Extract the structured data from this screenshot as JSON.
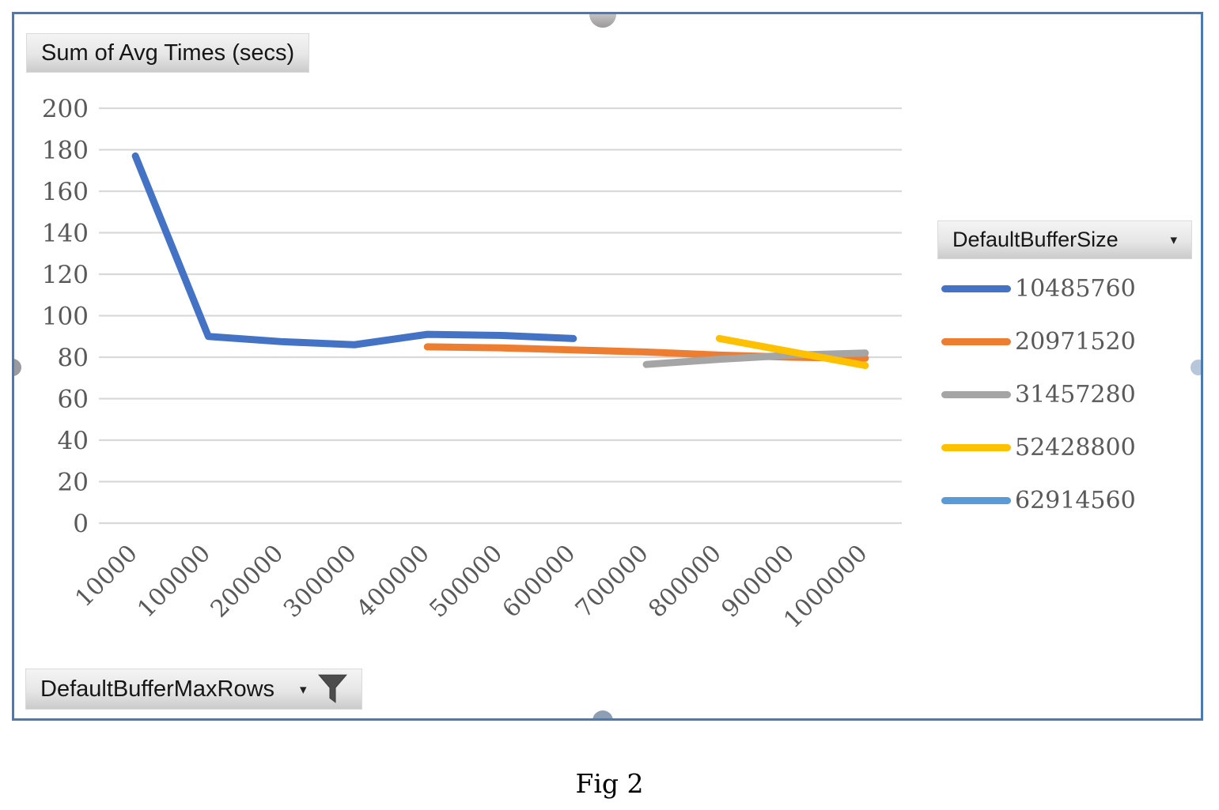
{
  "title_button": {
    "label": "Sum of Avg Times (secs)"
  },
  "legend": {
    "field_button": {
      "label": "DefaultBufferSize",
      "arrow": "▾"
    },
    "items": [
      {
        "label": "10485760",
        "color": "#4472C4"
      },
      {
        "label": "20971520",
        "color": "#ED7D31"
      },
      {
        "label": "31457280",
        "color": "#A5A5A5"
      },
      {
        "label": "52428800",
        "color": "#FFC000"
      },
      {
        "label": "62914560",
        "color": "#5B9BD5"
      }
    ]
  },
  "axis_field_button": {
    "label": "DefaultBufferMaxRows",
    "arrow": "▾",
    "filter_icon": "funnel-filter-icon"
  },
  "caption": "Fig 2",
  "colors": {
    "frame_border": "#4a7ab5",
    "gridline": "#d9d9d9",
    "axis_text": "#595959"
  },
  "chart_data": {
    "type": "line",
    "title": "Sum of Avg Times (secs)",
    "xlabel": "DefaultBufferMaxRows",
    "ylabel": "",
    "legend_title": "DefaultBufferSize",
    "legend_position": "right",
    "grid": true,
    "ylim": [
      0,
      200
    ],
    "ytick_step": 20,
    "categories": [
      10000,
      100000,
      200000,
      300000,
      400000,
      500000,
      600000,
      700000,
      800000,
      900000,
      1000000
    ],
    "series": [
      {
        "name": "10485760",
        "color": "#4472C4",
        "values": [
          177,
          90,
          87.5,
          86,
          91,
          90.5,
          89,
          null,
          null,
          null,
          null
        ]
      },
      {
        "name": "20971520",
        "color": "#ED7D31",
        "values": [
          null,
          null,
          null,
          null,
          85,
          84.5,
          83.5,
          82.5,
          81,
          80,
          79.5
        ]
      },
      {
        "name": "31457280",
        "color": "#A5A5A5",
        "values": [
          null,
          null,
          null,
          null,
          null,
          null,
          null,
          76.5,
          79,
          81,
          82
        ]
      },
      {
        "name": "52428800",
        "color": "#FFC000",
        "values": [
          null,
          null,
          null,
          null,
          null,
          null,
          null,
          null,
          89,
          82.5,
          76
        ]
      },
      {
        "name": "62914560",
        "color": "#5B9BD5",
        "values": [
          null,
          null,
          null,
          null,
          null,
          null,
          null,
          null,
          null,
          null,
          null
        ]
      }
    ]
  }
}
